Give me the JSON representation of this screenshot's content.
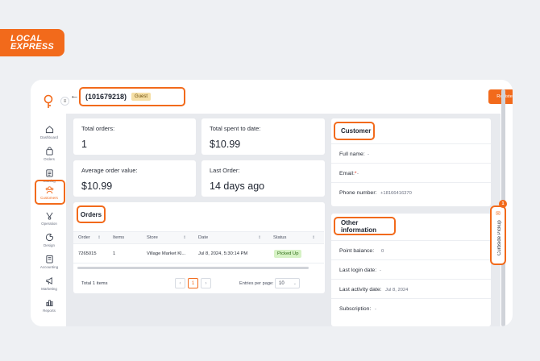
{
  "brand": {
    "line1": "LOCAL",
    "line2": "EXPRESS"
  },
  "sidebar": {
    "items": [
      {
        "label": "Dashboard",
        "icon": "home-icon"
      },
      {
        "label": "Orders",
        "icon": "bag-icon"
      },
      {
        "label": "Catalog",
        "icon": "clipboard-icon"
      },
      {
        "label": "Customers",
        "icon": "customers-icon",
        "active": true
      },
      {
        "label": "Operation",
        "icon": "operation-icon"
      },
      {
        "label": "Design",
        "icon": "design-icon"
      },
      {
        "label": "Accounting",
        "icon": "accounting-icon"
      },
      {
        "label": "Marketing",
        "icon": "megaphone-icon"
      },
      {
        "label": "Reports",
        "icon": "chart-icon"
      }
    ]
  },
  "header": {
    "customer_id": "(101679218)",
    "badge": "Guest",
    "register": "Register"
  },
  "stats": {
    "total_orders": {
      "label": "Total orders:",
      "value": "1"
    },
    "total_spent": {
      "label": "Total spent to date:",
      "value": "$10.99"
    },
    "avg_order": {
      "label": "Average order value:",
      "value": "$10.99"
    },
    "last_order": {
      "label": "Last Order:",
      "value": "14 days ago"
    }
  },
  "orders": {
    "title": "Orders",
    "columns": [
      "Order",
      "Items",
      "Store",
      "Date",
      "Status"
    ],
    "rows": [
      {
        "order": "7265015",
        "items": "1",
        "store": "Village Market Kl...",
        "date": "Jul 8, 2024, 5:30:14 PM",
        "status": "Picked Up"
      }
    ],
    "total_items": "Total 1 items",
    "page": "1",
    "entries_label": "Entries per page:",
    "entries_value": "10"
  },
  "customer": {
    "title": "Customer",
    "full_name": {
      "label": "Full name:",
      "value": "-"
    },
    "email": {
      "label": "Email:",
      "required": "*",
      "value": "-"
    },
    "phone": {
      "label": "Phone number:",
      "value": "+18166416370"
    }
  },
  "other_info": {
    "title": "Other information",
    "point_balance": {
      "label": "Point balance:",
      "value": "0"
    },
    "last_login": {
      "label": "Last login date:",
      "value": "-"
    },
    "last_activity": {
      "label": "Last activity date:",
      "value": "Jul 8, 2024"
    },
    "subscription": {
      "label": "Subscription:",
      "value": "-"
    }
  },
  "curbside": {
    "label": "Curbside Pickup",
    "count": "1"
  },
  "colors": {
    "accent": "#f26a1b",
    "status_green": "#d6f2c5"
  }
}
